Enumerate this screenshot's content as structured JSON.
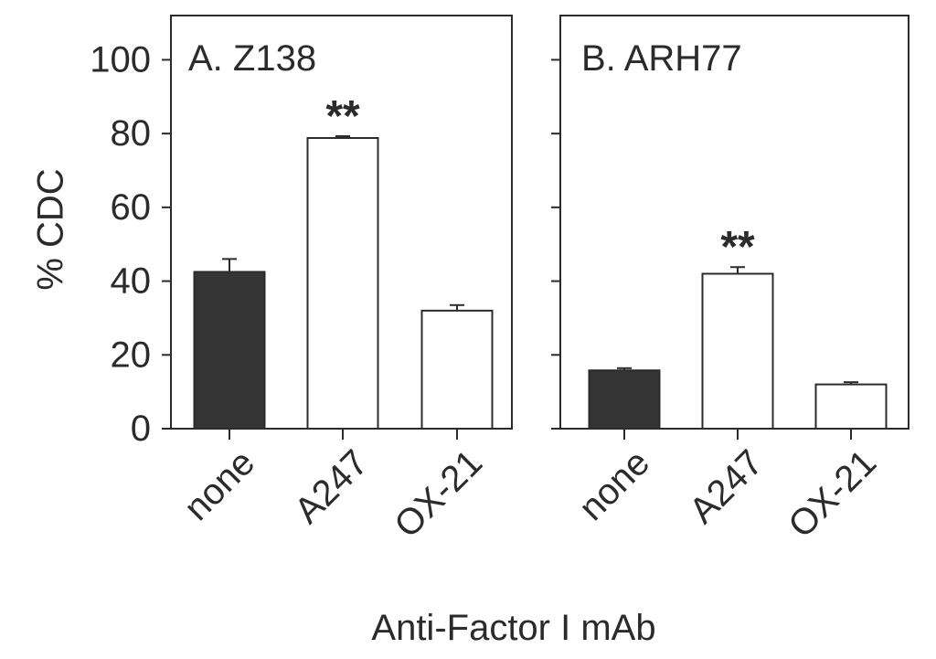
{
  "chart_data": {
    "type": "bar",
    "ylabel": "% CDC",
    "xlabel": "Anti-Factor I mAb",
    "ylim": [
      0,
      112
    ],
    "yticks": [
      0,
      20,
      40,
      60,
      80,
      100
    ],
    "categories": [
      "none",
      "A247",
      "OX-21"
    ],
    "colors": {
      "filled": "#353535",
      "open": "#ffffff",
      "stroke": "#2b2b2b"
    },
    "panels": [
      {
        "title": "A. Z138",
        "values": [
          42.5,
          78.8,
          32.0
        ],
        "errors": [
          3.5,
          0.5,
          1.5
        ],
        "fills": [
          "filled",
          "open",
          "open"
        ],
        "significance": [
          "",
          "**",
          ""
        ]
      },
      {
        "title": "B. ARH77",
        "values": [
          15.8,
          42.0,
          12.0
        ],
        "errors": [
          0.6,
          1.8,
          0.6
        ],
        "fills": [
          "filled",
          "open",
          "open"
        ],
        "significance": [
          "",
          "**",
          ""
        ]
      }
    ]
  }
}
